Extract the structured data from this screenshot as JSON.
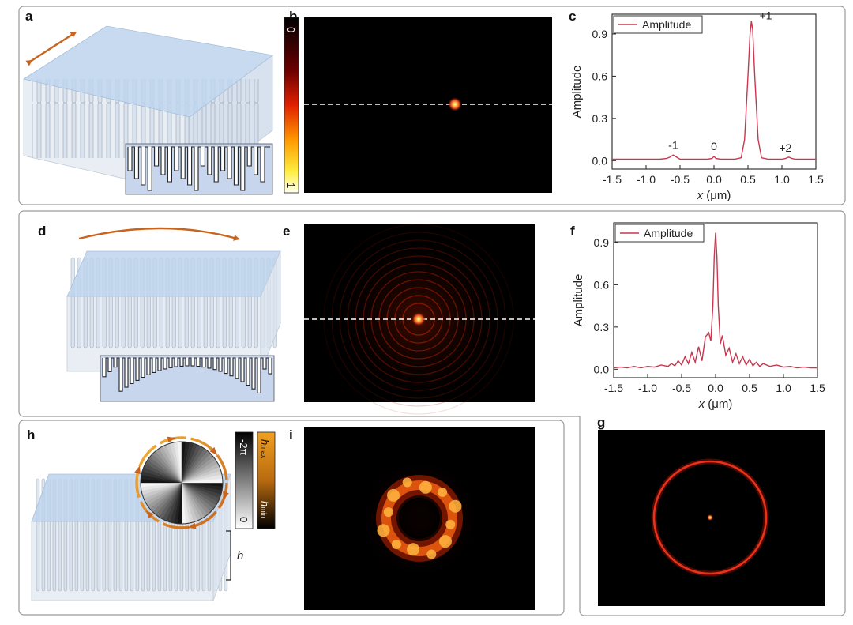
{
  "panels": {
    "a": "a",
    "b": "b",
    "c": "c",
    "d": "d",
    "e": "e",
    "f": "f",
    "g": "g",
    "h": "h",
    "i": "i"
  },
  "colorbar_b": {
    "top": "0",
    "bottom": "1"
  },
  "legend_h": {
    "phase_top": "-2π",
    "phase_bottom": "0",
    "height_top": "h",
    "height_top_sub": "max",
    "height_bottom": "h",
    "height_bottom_sub": "min",
    "height_symbol": "h"
  },
  "colors": {
    "curve": "#c8374f",
    "arrow": "#c8641e",
    "glass": "#bdd3ec",
    "heat_bg": "#000000"
  },
  "chart_data": [
    {
      "id": "c",
      "type": "line",
      "title": "",
      "xlabel_var": "x",
      "xlabel_unit": " (μm)",
      "ylabel": "Amplitude",
      "legend": "Amplitude",
      "xlim": [
        -1.5,
        1.5
      ],
      "ylim": [
        -0.06,
        1.04
      ],
      "xticks": [
        "-1.5",
        "-1.0",
        "-0.5",
        "0.0",
        "0.5",
        "1.0",
        "1.5"
      ],
      "yticks": [
        "0.0",
        "0.3",
        "0.6",
        "0.9"
      ],
      "annotations": [
        {
          "text": "-1",
          "x": -0.6,
          "y": 0.05
        },
        {
          "text": "0",
          "x": 0.0,
          "y": 0.04
        },
        {
          "text": "+1",
          "x": 0.6,
          "y": 0.97
        },
        {
          "text": "+2",
          "x": 1.05,
          "y": 0.03
        }
      ],
      "series": [
        {
          "name": "Amplitude",
          "x": [
            -1.5,
            -1.4,
            -1.3,
            -1.2,
            -1.1,
            -1.0,
            -0.9,
            -0.8,
            -0.7,
            -0.65,
            -0.6,
            -0.55,
            -0.5,
            -0.4,
            -0.3,
            -0.2,
            -0.1,
            -0.03,
            0.0,
            0.03,
            0.1,
            0.2,
            0.3,
            0.4,
            0.45,
            0.5,
            0.53,
            0.55,
            0.57,
            0.6,
            0.65,
            0.7,
            0.8,
            0.9,
            1.0,
            1.05,
            1.1,
            1.15,
            1.2,
            1.3,
            1.4,
            1.5
          ],
          "values": [
            0.01,
            0.01,
            0.01,
            0.01,
            0.01,
            0.01,
            0.01,
            0.01,
            0.015,
            0.025,
            0.04,
            0.025,
            0.01,
            0.01,
            0.01,
            0.01,
            0.01,
            0.015,
            0.03,
            0.015,
            0.01,
            0.01,
            0.01,
            0.02,
            0.15,
            0.6,
            0.9,
            0.99,
            0.93,
            0.6,
            0.15,
            0.02,
            0.01,
            0.01,
            0.01,
            0.015,
            0.025,
            0.015,
            0.01,
            0.01,
            0.01,
            0.01
          ]
        }
      ]
    },
    {
      "id": "f",
      "type": "line",
      "title": "",
      "xlabel_var": "x",
      "xlabel_unit": " (μm)",
      "ylabel": "Amplitude",
      "legend": "Amplitude",
      "xlim": [
        -1.5,
        1.5
      ],
      "ylim": [
        -0.06,
        1.04
      ],
      "xticks": [
        "-1.5",
        "-1.0",
        "-0.5",
        "0.0",
        "0.5",
        "1.0",
        "1.5"
      ],
      "yticks": [
        "0.0",
        "0.3",
        "0.6",
        "0.9"
      ],
      "annotations": [],
      "series": [
        {
          "name": "Amplitude",
          "x": [
            -1.5,
            -1.4,
            -1.3,
            -1.2,
            -1.1,
            -1.0,
            -0.9,
            -0.8,
            -0.7,
            -0.65,
            -0.6,
            -0.55,
            -0.5,
            -0.45,
            -0.4,
            -0.35,
            -0.3,
            -0.25,
            -0.2,
            -0.15,
            -0.1,
            -0.07,
            -0.04,
            -0.02,
            0.0,
            0.02,
            0.04,
            0.07,
            0.1,
            0.15,
            0.2,
            0.25,
            0.3,
            0.35,
            0.4,
            0.45,
            0.5,
            0.55,
            0.6,
            0.65,
            0.7,
            0.8,
            0.9,
            1.0,
            1.1,
            1.2,
            1.3,
            1.4,
            1.5
          ],
          "values": [
            0.01,
            0.015,
            0.01,
            0.02,
            0.01,
            0.02,
            0.015,
            0.03,
            0.02,
            0.04,
            0.025,
            0.06,
            0.03,
            0.09,
            0.04,
            0.12,
            0.05,
            0.16,
            0.06,
            0.23,
            0.26,
            0.2,
            0.45,
            0.8,
            0.97,
            0.8,
            0.45,
            0.18,
            0.24,
            0.1,
            0.15,
            0.05,
            0.11,
            0.04,
            0.09,
            0.03,
            0.07,
            0.025,
            0.05,
            0.02,
            0.04,
            0.02,
            0.03,
            0.015,
            0.02,
            0.01,
            0.015,
            0.01,
            0.01
          ]
        }
      ]
    }
  ]
}
